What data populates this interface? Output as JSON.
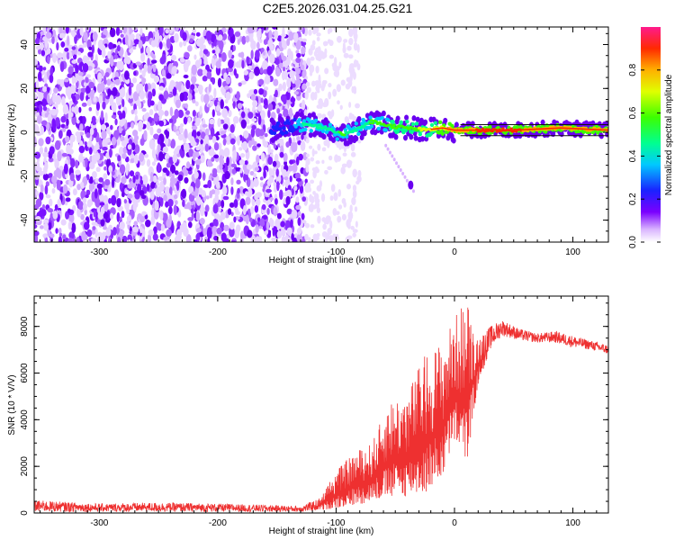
{
  "title": "C2E5.2026.031.04.25.G21",
  "chart_data": [
    {
      "type": "heatmap",
      "name": "spectrogram",
      "xlabel": "Height of straight line (km)",
      "ylabel": "Frequency (Hz)",
      "xlim": [
        -355,
        130
      ],
      "ylim": [
        -50,
        48
      ],
      "xticks": [
        -300,
        -200,
        -100,
        0,
        100
      ],
      "xtick_labels": [
        "-300",
        "-200",
        "-100",
        "0",
        "100"
      ],
      "yticks": [
        -40,
        -20,
        0,
        20,
        40
      ],
      "ytick_labels": [
        "-40",
        "-20",
        "0",
        "20",
        "40"
      ],
      "noise_region_x": [
        -355,
        -125
      ],
      "signal_track": [
        {
          "x": -155,
          "f": 1,
          "a": 0.25
        },
        {
          "x": -125,
          "f": 4,
          "a": 0.45
        },
        {
          "x": -110,
          "f": 2,
          "a": 0.5
        },
        {
          "x": -95,
          "f": -1,
          "a": 0.55
        },
        {
          "x": -80,
          "f": 2,
          "a": 0.5
        },
        {
          "x": -70,
          "f": 5,
          "a": 0.55
        },
        {
          "x": -55,
          "f": 3,
          "a": 0.6
        },
        {
          "x": -40,
          "f": 2,
          "a": 0.65
        },
        {
          "x": -25,
          "f": 1,
          "a": 0.7
        },
        {
          "x": -10,
          "f": 2,
          "a": 0.8
        },
        {
          "x": 0,
          "f": 1,
          "a": 0.85
        },
        {
          "x": 20,
          "f": 1,
          "a": 0.95
        },
        {
          "x": 50,
          "f": 1,
          "a": 0.95
        },
        {
          "x": 90,
          "f": 2,
          "a": 0.9
        },
        {
          "x": 130,
          "f": 1,
          "a": 0.9
        }
      ],
      "isolated_blob": {
        "x": -37,
        "f": -24
      },
      "colorbar": {
        "label": "Normalized spectral amplitude",
        "range": [
          0,
          1
        ],
        "ticks": [
          0.0,
          0.2,
          0.4,
          0.6,
          0.8
        ],
        "tick_labels": [
          "0.0",
          "0.2",
          "0.4",
          "0.6",
          "0.8"
        ]
      }
    },
    {
      "type": "line",
      "name": "snr",
      "xlabel": "Height of straight line (km)",
      "ylabel": "SNR (10 * V/V)",
      "xlim": [
        -355,
        130
      ],
      "ylim": [
        0,
        9300
      ],
      "xticks": [
        -300,
        -200,
        -100,
        0,
        100
      ],
      "xtick_labels": [
        "-300",
        "-200",
        "-100",
        "0",
        "100"
      ],
      "yticks": [
        0,
        2000,
        4000,
        6000,
        8000
      ],
      "ytick_labels": [
        "0",
        "2000",
        "4000",
        "6000",
        "8000"
      ],
      "color": "#ee3030",
      "envelope": [
        {
          "x": -355,
          "lo": 50,
          "hi": 550
        },
        {
          "x": -300,
          "lo": 50,
          "hi": 400
        },
        {
          "x": -250,
          "lo": 50,
          "hi": 450
        },
        {
          "x": -200,
          "lo": 50,
          "hi": 400
        },
        {
          "x": -160,
          "lo": 50,
          "hi": 350
        },
        {
          "x": -130,
          "lo": 50,
          "hi": 300
        },
        {
          "x": -115,
          "lo": 100,
          "hi": 600
        },
        {
          "x": -100,
          "lo": 200,
          "hi": 1800
        },
        {
          "x": -85,
          "lo": 300,
          "hi": 2600
        },
        {
          "x": -70,
          "lo": 500,
          "hi": 3000
        },
        {
          "x": -55,
          "lo": 600,
          "hi": 4800
        },
        {
          "x": -40,
          "lo": 700,
          "hi": 5200
        },
        {
          "x": -25,
          "lo": 800,
          "hi": 6800
        },
        {
          "x": -10,
          "lo": 1500,
          "hi": 7400
        },
        {
          "x": 0,
          "lo": 3000,
          "hi": 8400
        },
        {
          "x": 10,
          "lo": 2000,
          "hi": 9300
        },
        {
          "x": 20,
          "lo": 5500,
          "hi": 7500
        },
        {
          "x": 30,
          "lo": 7000,
          "hi": 8000
        },
        {
          "x": 40,
          "lo": 7600,
          "hi": 8300
        },
        {
          "x": 55,
          "lo": 7400,
          "hi": 7900
        },
        {
          "x": 70,
          "lo": 7300,
          "hi": 7700
        },
        {
          "x": 85,
          "lo": 7300,
          "hi": 7800
        },
        {
          "x": 100,
          "lo": 7100,
          "hi": 7600
        },
        {
          "x": 115,
          "lo": 7000,
          "hi": 7400
        },
        {
          "x": 130,
          "lo": 6800,
          "hi": 7200
        }
      ]
    }
  ]
}
